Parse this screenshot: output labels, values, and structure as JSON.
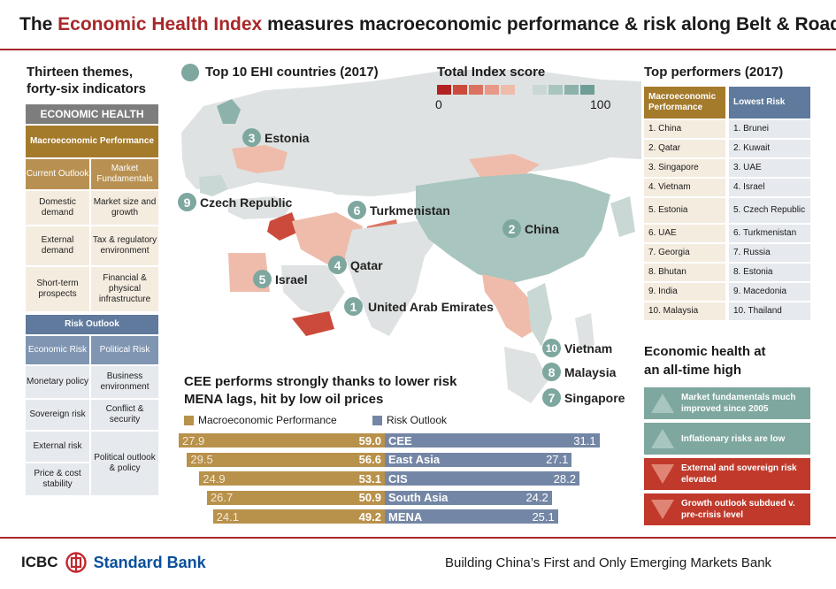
{
  "header": {
    "title_pre": "The ",
    "title_highlight": "Economic Health Index",
    "title_post": " measures macroeconomic performance & risk along Belt & Road"
  },
  "left_panel": {
    "title_line1": "Thirteen themes,",
    "title_line2": "forty-six indicators",
    "economic_health": "ECONOMIC HEALTH",
    "macro": "Macroeconomic Performance",
    "current_outlook": "Current Outlook",
    "market_fundamentals": "Market Fundamentals",
    "macro_rows": [
      [
        "Domestic demand",
        "Market size and growth"
      ],
      [
        "External demand",
        "Tax & regulatory environment"
      ],
      [
        "Short-term prospects",
        "Financial & physical infrastructure"
      ]
    ],
    "risk_outlook": "Risk Outlook",
    "economic_risk": "Economic Risk",
    "political_risk": "Political Risk",
    "risk_left": [
      "Monetary policy",
      "Sovereign risk",
      "External risk",
      "Price & cost stability"
    ],
    "risk_right": [
      "Business environment",
      "Conflict & security",
      "Political outlook & policy"
    ]
  },
  "map": {
    "top10_title": "Top 10 EHI countries (2017)",
    "legend_title": "Total Index score",
    "legend_min": "0",
    "legend_max": "100",
    "legend_colors": [
      "#b22222",
      "#cc4a3c",
      "#db7260",
      "#e79886",
      "#efbcac",
      "#dfe2e2",
      "#c9d8d5",
      "#a9c5bf",
      "#8cb2ab",
      "#6f9e96"
    ],
    "pins": [
      {
        "num": "1",
        "name": "United Arab Emirates"
      },
      {
        "num": "2",
        "name": "China"
      },
      {
        "num": "3",
        "name": "Estonia"
      },
      {
        "num": "4",
        "name": "Qatar"
      },
      {
        "num": "5",
        "name": "Israel"
      },
      {
        "num": "6",
        "name": "Turkmenistan"
      },
      {
        "num": "7",
        "name": "Singapore"
      },
      {
        "num": "8",
        "name": "Malaysia"
      },
      {
        "num": "9",
        "name": "Czech Republic"
      },
      {
        "num": "10",
        "name": "Vietnam"
      }
    ]
  },
  "bars": {
    "title_line1": "CEE performs strongly thanks to lower risk",
    "title_line2": "MENA lags, hit by low oil prices",
    "key_macro": "Macroeconomic Performance",
    "key_risk": "Risk Outlook",
    "macro_color": "#b8914a",
    "risk_color": "#7486a5",
    "rows": [
      {
        "region": "CEE",
        "macro": "27.9",
        "total": "59.0",
        "risk": "31.1"
      },
      {
        "region": "East Asia",
        "macro": "29.5",
        "total": "56.6",
        "risk": "27.1"
      },
      {
        "region": "CIS",
        "macro": "24.9",
        "total": "53.1",
        "risk": "28.2"
      },
      {
        "region": "South Asia",
        "macro": "26.7",
        "total": "50.9",
        "risk": "24.2"
      },
      {
        "region": "MENA",
        "macro": "24.1",
        "total": "49.2",
        "risk": "25.1"
      }
    ]
  },
  "right_panel": {
    "title": "Top performers  (2017)",
    "col_macro": "Macroeconomic Performance",
    "col_risk": "Lowest Risk",
    "macro_list": [
      "1. China",
      "2. Qatar",
      "3. Singapore",
      "4. Vietnam",
      "5. Estonia",
      "6. UAE",
      "7. Georgia",
      "8. Bhutan",
      "9. India",
      "10. Malaysia"
    ],
    "risk_list": [
      "1. Brunei",
      "2. Kuwait",
      "3. UAE",
      "4. Israel",
      "5. Czech Republic",
      "6. Turkmenistan",
      "7. Russia",
      "8. Estonia",
      "9. Macedonia",
      "10. Thailand"
    ],
    "health_title_line1": "Economic health at",
    "health_title_line2": "an all-time high",
    "stats": [
      {
        "text": "Market fundamentals much improved since 2005",
        "dir": "up"
      },
      {
        "text": "Inflationary risks are low",
        "dir": "up"
      },
      {
        "text": "External and sovereign risk elevated",
        "dir": "down"
      },
      {
        "text": "Growth outlook subdued v. pre-crisis level",
        "dir": "down"
      }
    ]
  },
  "footer": {
    "icbc": "ICBC",
    "standard_bank": "Standard Bank",
    "tagline": "Building China’s First and Only Emerging Markets Bank"
  }
}
